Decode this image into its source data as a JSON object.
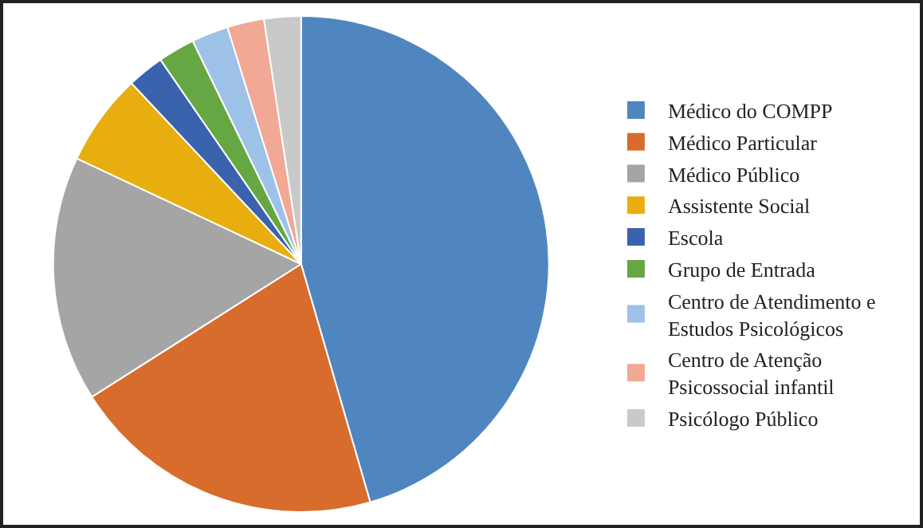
{
  "chart_data": {
    "type": "pie",
    "categories": [
      "Médico do COMPP",
      "Médico Particular",
      "Médico Público",
      "Assistente Social",
      "Escola",
      "Grupo de Entrada",
      "Centro de Atendimento e Estudos Psicológicos",
      "Centro de Atenção Psicossocial infantil",
      "Psicólogo Público"
    ],
    "values": [
      45.5,
      20.5,
      16,
      6,
      2.4,
      2.4,
      2.4,
      2.4,
      2.4
    ],
    "colors": [
      "#4f86c0",
      "#d86c2c",
      "#a5a5a5",
      "#e8ae0f",
      "#3a62ad",
      "#66a744",
      "#9ec1e8",
      "#f1a894",
      "#c9c9c9"
    ],
    "legend": "right"
  }
}
